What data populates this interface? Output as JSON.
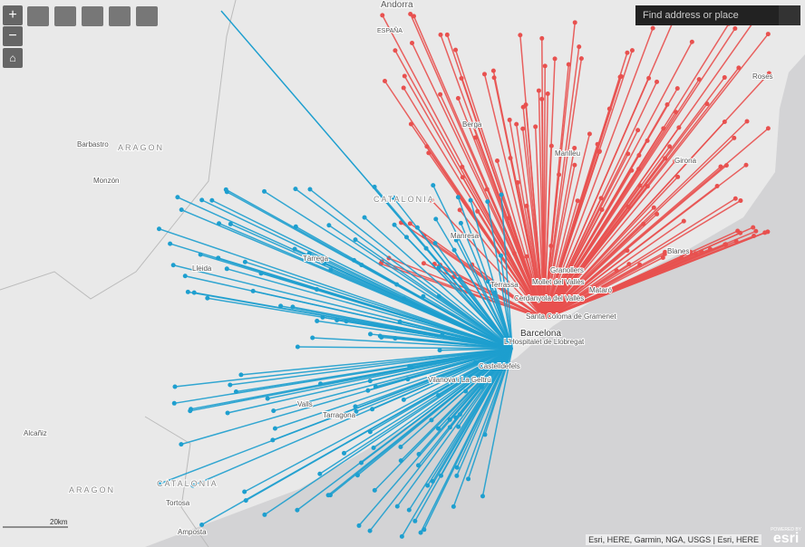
{
  "toolbar": {
    "zoom_in": "+",
    "zoom_out": "−"
  },
  "search": {
    "placeholder": "Find address or place"
  },
  "map": {
    "labels": [
      "Andorra",
      "ESPAÑA",
      "Barbastro",
      "ARAGON",
      "Monzón",
      "CATALONIA",
      "Berga",
      "Manlleu",
      "Girona",
      "Roses",
      "Manresa",
      "Blanes",
      "Tàrrega",
      "Lleida",
      "Terrassa",
      "Mollet del Vallès",
      "Granollers",
      "Mataró",
      "Cerdanyola del Vallès",
      "Santa Coloma de Gramenet",
      "Barcelona",
      "L'Hospitalet de Llobregat",
      "Castelldefels",
      "Vilanova i La Geltrú",
      "Valls",
      "Tarragona",
      "Alcañiz",
      "ARAGON",
      "CATALONIA",
      "Tortosa",
      "Amposta"
    ]
  },
  "scale_bar": {
    "label": "20km"
  },
  "attribution": "Esri, HERE, Garmin, NGA, USGS | Esri, HERE",
  "logo": {
    "powered_by": "POWERED BY",
    "brand": "esri"
  }
}
